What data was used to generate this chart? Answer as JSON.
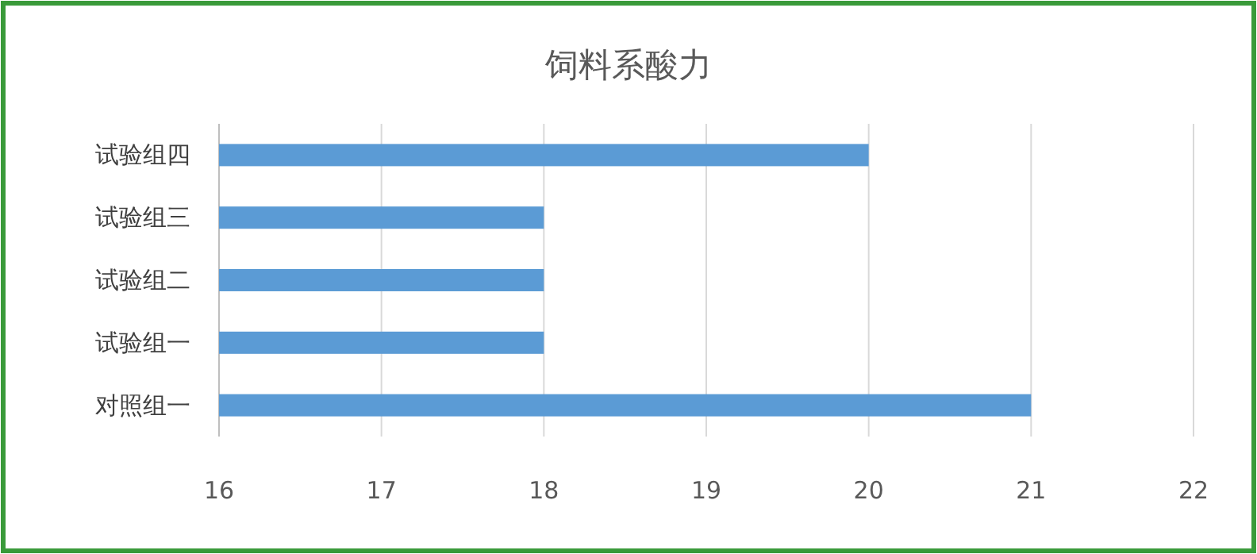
{
  "chart_data": {
    "type": "bar",
    "orientation": "horizontal",
    "title": "饲料系酸力",
    "categories": [
      "试验组四",
      "试验组三",
      "试验组二",
      "试验组一",
      "对照组一"
    ],
    "series": [
      {
        "color": "#5b9bd5",
        "values": [
          20,
          18,
          18,
          18,
          21
        ]
      }
    ],
    "xlim": [
      16,
      22
    ],
    "xticks": [
      16,
      17,
      18,
      19,
      20,
      21,
      22
    ],
    "grid": "x"
  }
}
